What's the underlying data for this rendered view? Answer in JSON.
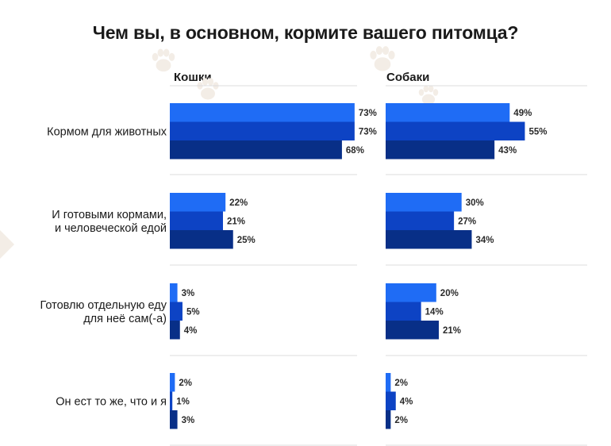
{
  "colors": {
    "series1": "#1f6cf5",
    "series2": "#0d43c4",
    "series3": "#082f87",
    "paw": "#f3ede6"
  },
  "chart_data": {
    "type": "bar",
    "title": "Чем вы, в основном, кормите вашего питомца?",
    "orientation": "horizontal",
    "categories": [
      [
        "Кормом для животных"
      ],
      [
        "И готовыми кормами,",
        "и человеческой едой"
      ],
      [
        "Готовлю отдельную еду",
        "для неё сам(-а)"
      ],
      [
        "Он ест то же, что и я"
      ]
    ],
    "panels": [
      {
        "name": "Кошки",
        "series": [
          {
            "values": [
              73,
              22,
              3,
              2
            ],
            "labels": [
              "73%",
              "22%",
              "3%",
              "2%"
            ]
          },
          {
            "values": [
              73,
              21,
              5,
              1
            ],
            "labels": [
              "73%",
              "21%",
              "5%",
              "1%"
            ]
          },
          {
            "values": [
              68,
              25,
              4,
              3
            ],
            "labels": [
              "68%",
              "25%",
              "4%",
              "3%"
            ]
          }
        ]
      },
      {
        "name": "Собаки",
        "series": [
          {
            "values": [
              49,
              30,
              20,
              2
            ],
            "labels": [
              "49%",
              "30%",
              "20%",
              "2%"
            ]
          },
          {
            "values": [
              55,
              27,
              14,
              4
            ],
            "labels": [
              "55%",
              "27%",
              "14%",
              "4%"
            ]
          },
          {
            "values": [
              43,
              34,
              21,
              2
            ],
            "labels": [
              "43%",
              "34%",
              "21%",
              "2%"
            ]
          }
        ]
      }
    ],
    "xlim": [
      0,
      100
    ],
    "grid": false,
    "legend": "none"
  }
}
